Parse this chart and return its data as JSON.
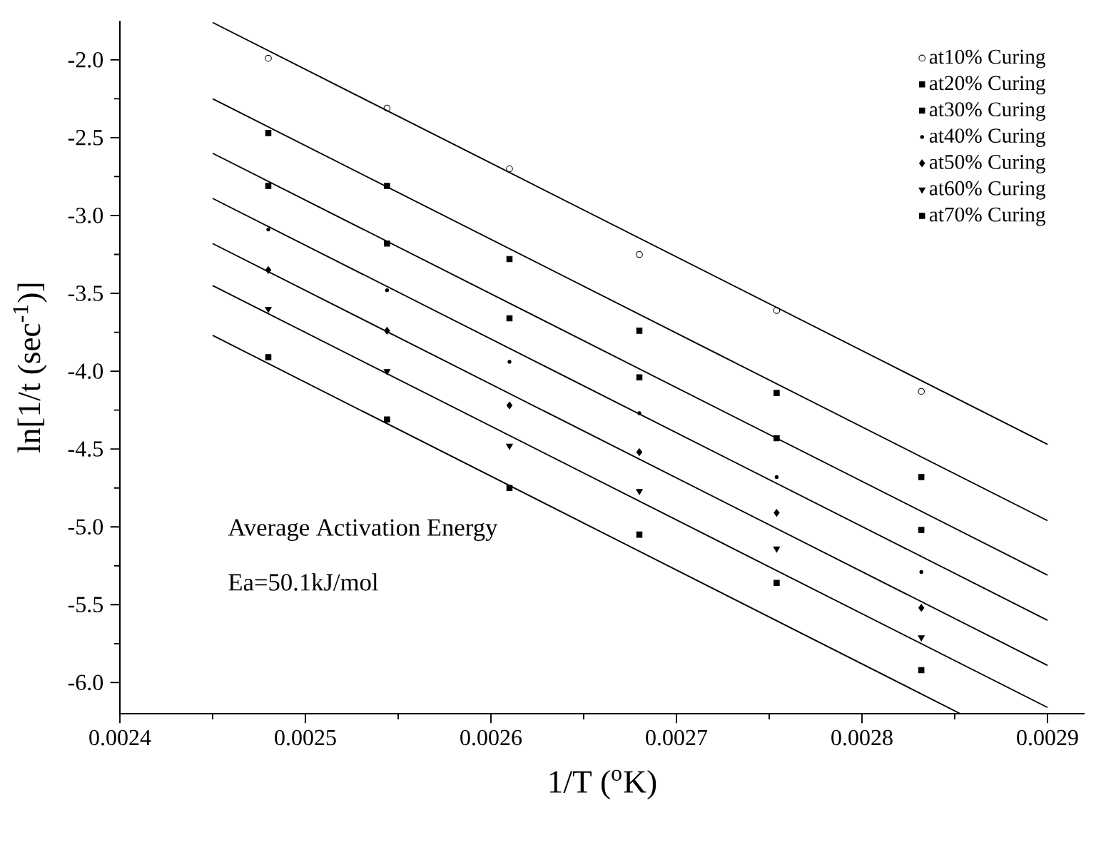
{
  "chart_data": {
    "type": "scatter",
    "xlabel": "1/T ($^{o}$K)",
    "ylabel": "ln[1/t (sec$^{-1}$)]",
    "annotations": [
      "Average Activation Energy",
      "Ea=50.1kJ/mol"
    ],
    "x": [
      0.00248,
      0.002544,
      0.00261,
      0.00268,
      0.002754,
      0.002832
    ],
    "xlim": [
      0.0024,
      0.00292
    ],
    "xticks": [
      0.0024,
      0.0025,
      0.0026,
      0.0027,
      0.0028,
      0.0029
    ],
    "ylim": [
      -6.2,
      -1.75
    ],
    "yticks": [
      {
        "value": -2,
        "label": "-2.0"
      },
      {
        "value": -2.5,
        "label": "-2.5"
      },
      {
        "value": -3,
        "label": "-3.0"
      },
      {
        "value": -3.5,
        "label": "-3.5"
      },
      {
        "value": -4,
        "label": "-4.0"
      },
      {
        "value": -4.5,
        "label": "-4.5"
      },
      {
        "value": -5,
        "label": "-5.0"
      },
      {
        "value": -5.5,
        "label": "-5.5"
      },
      {
        "value": -6,
        "label": "-6.0"
      }
    ],
    "legend": "top right",
    "grid": false,
    "series": [
      {
        "name": "at10% Curing",
        "color": "#000000",
        "marker": "circle",
        "values": [
          -1.99,
          -2.31,
          -2.7,
          -3.25,
          -3.61,
          -4.13
        ]
      },
      {
        "name": "at20% Curing",
        "color": "#000000",
        "marker": "square",
        "values": [
          -2.47,
          -2.81,
          -3.28,
          -3.74,
          -4.14,
          -4.68
        ]
      },
      {
        "name": "at30% Curing",
        "color": "#000000",
        "marker": "square",
        "values": [
          -2.81,
          -3.18,
          -3.66,
          -4.04,
          -4.43,
          -5.02
        ]
      },
      {
        "name": "at40% Curing",
        "color": "#000000",
        "marker": "cross",
        "values": [
          -3.09,
          -3.48,
          -3.94,
          -4.27,
          -4.68,
          -5.29
        ]
      },
      {
        "name": "at50% Curing",
        "color": "#000000",
        "marker": "diamond",
        "values": [
          -3.35,
          -3.74,
          -4.22,
          -4.52,
          -4.91,
          -5.52
        ]
      },
      {
        "name": "at60% Curing",
        "color": "#000000",
        "marker": "triangle",
        "values": [
          -3.6,
          -4.0,
          -4.48,
          -4.77,
          -5.14,
          -5.71
        ]
      },
      {
        "name": "at70% Curing",
        "color": "#000000",
        "marker": "square",
        "values": [
          -3.91,
          -4.31,
          -4.75,
          -5.05,
          -5.36,
          -5.92
        ]
      },
      {
        "type": "line",
        "color": "#000000",
        "x": [
          0.00245,
          0.0029
        ],
        "values": [
          -1.76,
          -4.47
        ]
      },
      {
        "type": "line",
        "color": "#000000",
        "x": [
          0.00245,
          0.0029
        ],
        "values": [
          -2.25,
          -4.96
        ]
      },
      {
        "type": "line",
        "color": "#000000",
        "x": [
          0.00245,
          0.0029
        ],
        "values": [
          -2.6,
          -5.31
        ]
      },
      {
        "type": "line",
        "color": "#000000",
        "x": [
          0.00245,
          0.0029
        ],
        "values": [
          -2.89,
          -5.6
        ]
      },
      {
        "type": "line",
        "color": "#000000",
        "x": [
          0.00245,
          0.0029
        ],
        "values": [
          -3.18,
          -5.89
        ]
      },
      {
        "type": "line",
        "color": "#000000",
        "x": [
          0.00245,
          0.0029
        ],
        "values": [
          -3.45,
          -6.16
        ]
      },
      {
        "type": "line",
        "color": "#000000",
        "x": [
          0.00245,
          0.002853
        ],
        "values": [
          -3.77,
          -6.2
        ]
      }
    ]
  }
}
